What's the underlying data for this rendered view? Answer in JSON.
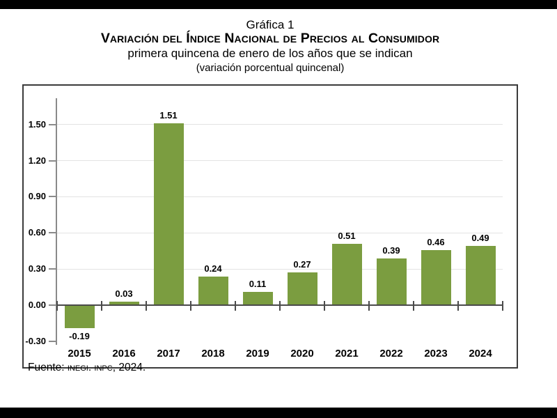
{
  "header": {
    "figure_label": "Gráfica 1",
    "main_title": "Variación del Índice Nacional de Precios al Consumidor",
    "subtitle1": "primera quincena de enero de los años que se indican",
    "subtitle2": "(variación porcentual quincenal)"
  },
  "source": {
    "prefix": "Fuente: ",
    "smallcaps": "INEGI. INPC",
    "suffix": ", 2024."
  },
  "colors": {
    "bar": "#7b9d40",
    "axis": "#8a8a8a",
    "zero_line": "#4a4a4a",
    "gridline": "#e3e3e3",
    "box_border": "#3b3b3b",
    "letterbox": "#000000",
    "text": "#000000"
  },
  "chart_data": {
    "type": "bar",
    "title": "Variación del Índice Nacional de Precios al Consumidor",
    "subtitle": "primera quincena de enero de los años que se indican (variación porcentual quincenal)",
    "categories": [
      "2015",
      "2016",
      "2017",
      "2018",
      "2019",
      "2020",
      "2021",
      "2022",
      "2023",
      "2024"
    ],
    "values": [
      -0.19,
      0.03,
      1.51,
      0.24,
      0.11,
      0.27,
      0.51,
      0.39,
      0.46,
      0.49
    ],
    "value_labels": [
      "-0.19",
      "0.03",
      "1.51",
      "0.24",
      "0.11",
      "0.27",
      "0.51",
      "0.39",
      "0.46",
      "0.49"
    ],
    "xlabel": "",
    "ylabel": "",
    "ylim": [
      -0.3,
      1.72
    ],
    "ytick_values": [
      -0.3,
      0.0,
      0.3,
      0.6,
      0.9,
      1.2,
      1.5
    ],
    "ytick_labels": [
      "-0.30",
      "0.00",
      "0.30",
      "0.60",
      "0.90",
      "1.20",
      "1.50"
    ],
    "gridline_values": [
      0.3,
      0.6,
      0.9,
      1.2,
      1.5
    ],
    "grid": true,
    "legend": false
  }
}
